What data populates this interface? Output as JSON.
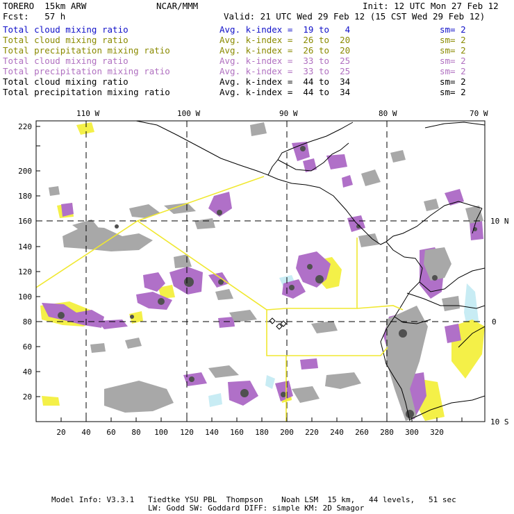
{
  "header": {
    "model": "TORERO  15km ARW",
    "org": "NCAR/MMM",
    "init": "Init: 12 UTC Mon 27 Feb 12",
    "fcst": "Fcst:   57 h",
    "valid": "Valid: 21 UTC Wed 29 Feb 12 (15 CST Wed 29 Feb 12)"
  },
  "legend": [
    {
      "field": "Total cloud mixing ratio",
      "kindex": "Avg. k-index =  19 to   4",
      "sm": "sm= 2",
      "color": "#1010c8"
    },
    {
      "field": "Total cloud mixing ratio",
      "kindex": "Avg. k-index =  26 to  20",
      "sm": "sm= 2",
      "color": "#8a8a00"
    },
    {
      "field": "Total precipitation mixing ratio",
      "kindex": "Avg. k-index =  26 to  20",
      "sm": "sm= 2",
      "color": "#8a8a00"
    },
    {
      "field": "Total cloud mixing ratio",
      "kindex": "Avg. k-index =  33 to  25",
      "sm": "sm= 2",
      "color": "#b070c0"
    },
    {
      "field": "Total precipitation mixing ratio",
      "kindex": "Avg. k-index =  33 to  25",
      "sm": "sm= 2",
      "color": "#b070c0"
    },
    {
      "field": "Total cloud mixing ratio",
      "kindex": "Avg. k-index =  44 to  34",
      "sm": "sm= 2",
      "color": "#000000"
    },
    {
      "field": "Total precipitation mixing ratio",
      "kindex": "Avg. k-index =  44 to  34",
      "sm": "sm= 2",
      "color": "#000000"
    }
  ],
  "map": {
    "lon_labels": [
      "110 W",
      "100 W",
      "90 W",
      "80 W",
      "70 W"
    ],
    "lat_labels": [
      "10 N",
      "0",
      "10 S"
    ],
    "x_ticks": [
      "20",
      "40",
      "60",
      "80",
      "100",
      "120",
      "140",
      "160",
      "180",
      "200",
      "220",
      "240",
      "260",
      "280",
      "300",
      "320"
    ],
    "y_ticks": [
      "20",
      "40",
      "60",
      "80",
      "100",
      "120",
      "140",
      "160",
      "180",
      "200",
      "220"
    ],
    "colors": {
      "gray": "#a8a8a8",
      "darkgray": "#505050",
      "purple": "#b070c8",
      "yellow": "#f4f048",
      "cyan": "#c8ecf4",
      "box": "#f0e830"
    }
  },
  "footer": {
    "line1": "Model Info: V3.3.1   Tiedtke YSU PBL  Thompson    Noah LSM  15 km,   44 levels,   51 sec",
    "line2": "LW: Godd SW: Goddard DIFF: simple KM: 2D Smagor"
  }
}
